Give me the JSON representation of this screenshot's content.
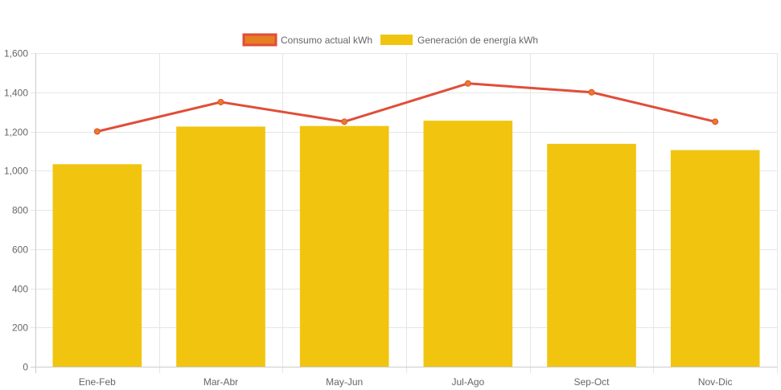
{
  "chart_data": {
    "type": "bar",
    "categories": [
      "Ene-Feb",
      "Mar-Abr",
      "May-Jun",
      "Jul-Ago",
      "Sep-Oct",
      "Nov-Dic"
    ],
    "series": [
      {
        "name": "Consumo actual kWh",
        "type": "line",
        "values": [
          1200,
          1350,
          1250,
          1445,
          1400,
          1250
        ],
        "color": "#e04e39",
        "point_fill": "#e67e22"
      },
      {
        "name": "Generación de energía kWh",
        "type": "bar",
        "values": [
          1033,
          1225,
          1228,
          1255,
          1137,
          1105
        ],
        "color": "#f1c40f"
      }
    ],
    "ylim": [
      0,
      1600
    ],
    "yticks": [
      0,
      200,
      400,
      600,
      800,
      1000,
      1200,
      1400,
      1600
    ],
    "ytick_labels": [
      "0",
      "200",
      "400",
      "600",
      "800",
      "1,000",
      "1,200",
      "1,400",
      "1,600"
    ],
    "grid": true,
    "legend_position": "top-center",
    "title": "",
    "xlabel": "",
    "ylabel": ""
  }
}
